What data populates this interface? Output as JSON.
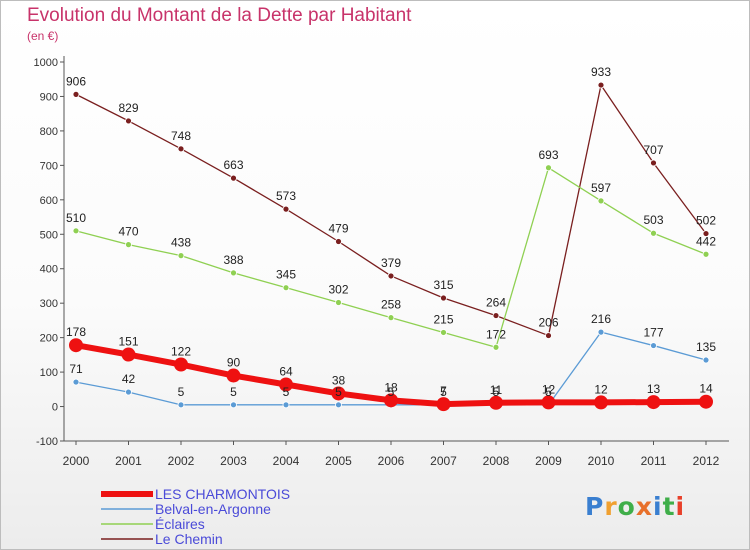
{
  "title": "Evolution du Montant de la Dette par Habitant",
  "subtitle": "(en €)",
  "brand": {
    "letters": [
      "P",
      "r",
      "o",
      "x",
      "i",
      "t",
      "i"
    ],
    "colors": [
      "#3a7fd0",
      "#f0a030",
      "#3fae49",
      "#e8702a",
      "#3a7fd0",
      "#3fae49",
      "#e8402a"
    ]
  },
  "chart_data": {
    "type": "line",
    "x": [
      "2000",
      "2001",
      "2002",
      "2003",
      "2004",
      "2005",
      "2006",
      "2007",
      "2008",
      "2009",
      "2010",
      "2011",
      "2012"
    ],
    "ylim": [
      -100,
      1000
    ],
    "yticks": [
      "-100",
      "0",
      "100",
      "200",
      "300",
      "400",
      "500",
      "600",
      "700",
      "800",
      "900",
      "1000"
    ],
    "grid": false,
    "legend": "bottom-left",
    "series": [
      {
        "name": "LES CHARMONTOIS",
        "color": "#ee1111",
        "width": 6,
        "marker": 7,
        "values": [
          178,
          151,
          122,
          90,
          64,
          38,
          18,
          7,
          11,
          12,
          12,
          13,
          14
        ],
        "labels": [
          "178",
          "151",
          "122",
          "90",
          "64",
          "38",
          "18",
          "7",
          "11",
          "12",
          "12",
          "13",
          "14"
        ]
      },
      {
        "name": "Belval-en-Argonne",
        "color": "#5b9bd5",
        "width": 1.3,
        "marker": 3,
        "values": [
          71,
          42,
          5,
          5,
          5,
          5,
          5,
          5,
          5,
          5,
          216,
          177,
          135
        ],
        "labels": [
          "71",
          "42",
          "5",
          "5",
          "5",
          "5",
          "5",
          "5",
          "5",
          "5",
          "216",
          "177",
          "135"
        ]
      },
      {
        "name": "Éclaires",
        "color": "#8fd052",
        "width": 1.3,
        "marker": 3,
        "values": [
          510,
          470,
          438,
          388,
          345,
          302,
          258,
          215,
          172,
          693,
          597,
          503,
          442
        ],
        "labels": [
          "510",
          "470",
          "438",
          "388",
          "345",
          "302",
          "258",
          "215",
          "172",
          "693",
          "597",
          "503",
          "442"
        ]
      },
      {
        "name": "Le Chemin",
        "color": "#7a1f1f",
        "width": 1.3,
        "marker": 3,
        "values": [
          906,
          829,
          748,
          663,
          573,
          479,
          379,
          315,
          264,
          206,
          933,
          707,
          502
        ],
        "labels": [
          "906",
          "829",
          "748",
          "663",
          "573",
          "479",
          "379",
          "315",
          "264",
          "206",
          "933",
          "707",
          "502"
        ]
      }
    ]
  }
}
